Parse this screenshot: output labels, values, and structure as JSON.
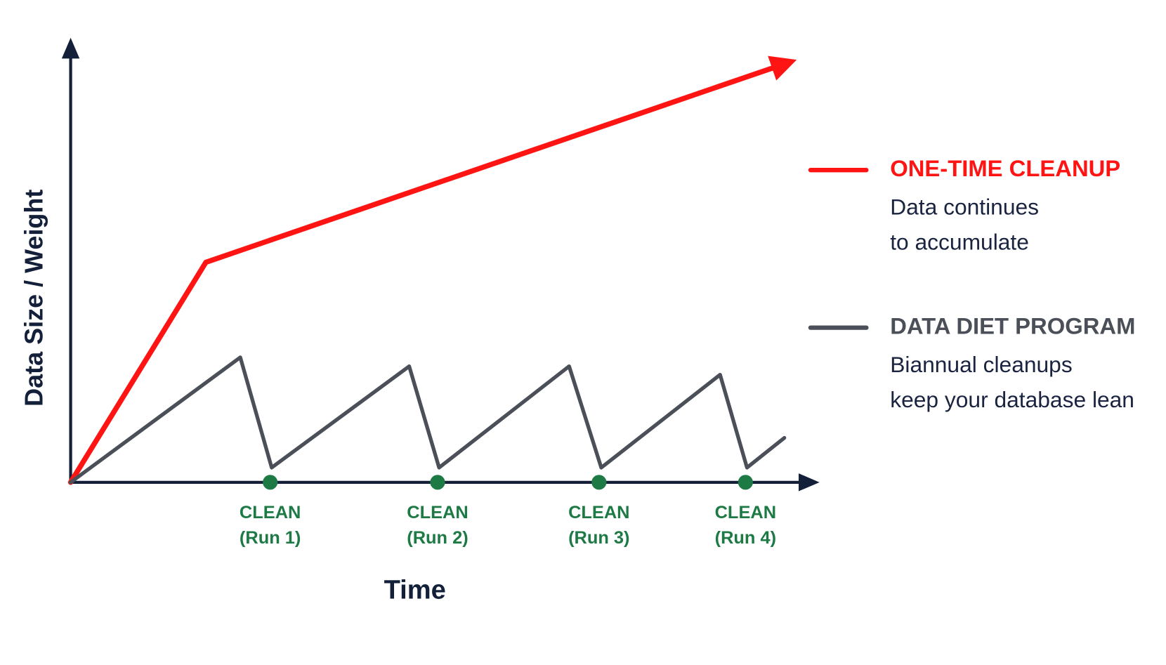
{
  "chart_data": {
    "type": "line",
    "x_label": "Time",
    "y_label": "Data Size / Weight",
    "xlim": [
      0,
      100
    ],
    "ylim": [
      0,
      100
    ],
    "series": [
      {
        "name": "ONE-TIME CLEANUP",
        "color": "#ff1414",
        "description": [
          "Data continues",
          "to accumulate"
        ],
        "x": [
          0,
          18.1,
          95.5
        ],
        "values": [
          0,
          49.5,
          94.1
        ]
      },
      {
        "name": "DATA DIET PROGRAM",
        "color": "#4a4f58",
        "description": [
          "Biannual cleanups",
          "keep your database lean"
        ],
        "x": [
          0,
          22.7,
          26.9,
          45.3,
          49.3,
          66.7,
          71.0,
          86.9,
          90.5,
          95.5
        ],
        "values": [
          0,
          28.1,
          3.3,
          26.1,
          3.3,
          26.1,
          3.3,
          24.2,
          3.3,
          10.0
        ]
      }
    ],
    "events_color": "#1e7a45",
    "events": [
      {
        "x": 26.7,
        "label": [
          "CLEAN",
          "(Run 1)"
        ]
      },
      {
        "x": 49.1,
        "label": [
          "CLEAN",
          "(Run 2)"
        ]
      },
      {
        "x": 70.7,
        "label": [
          "CLEAN",
          "(Run 3)"
        ]
      },
      {
        "x": 90.3,
        "label": [
          "CLEAN",
          "(Run 4)"
        ]
      }
    ]
  }
}
